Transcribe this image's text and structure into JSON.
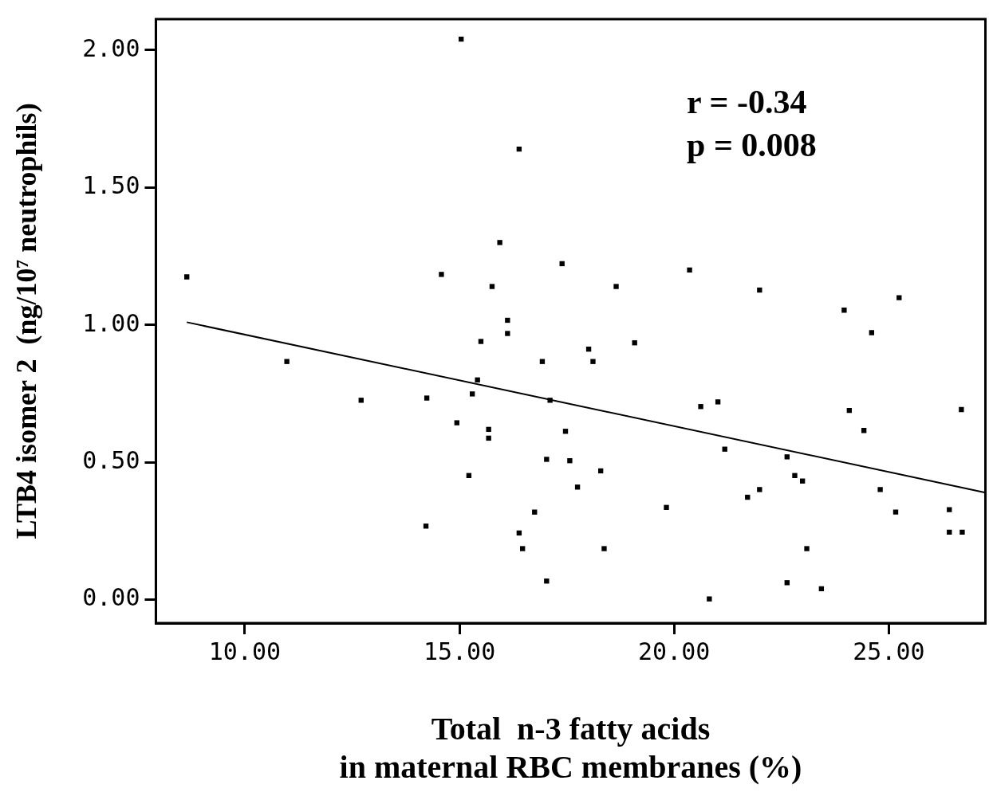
{
  "chart_data": {
    "type": "scatter",
    "xlabel": "Total  n-3 fatty acids\nin maternal RBC membranes (%)",
    "ylabel": "LTB4 isomer 2  (ng/10⁷ neutrophils)",
    "annotations": [
      "r = -0.34",
      "p = 0.008"
    ],
    "xlim": [
      7.93,
      27.25
    ],
    "ylim": [
      -0.085,
      2.113
    ],
    "xticks": [
      {
        "value": 10,
        "label": "10.00"
      },
      {
        "value": 15,
        "label": "15.00"
      },
      {
        "value": 20,
        "label": "20.00"
      },
      {
        "value": 25,
        "label": "25.00"
      }
    ],
    "yticks": [
      {
        "value": 0,
        "label": "0.00"
      },
      {
        "value": 0.5,
        "label": "0.50"
      },
      {
        "value": 1,
        "label": "1.00"
      },
      {
        "value": 1.5,
        "label": "1.50"
      },
      {
        "value": 2,
        "label": "2.00"
      }
    ],
    "grid": false,
    "legend": false,
    "series": [
      {
        "type": "scatter",
        "color": "#000000",
        "marker": "square",
        "x": [
          8.65,
          10.98,
          12.71,
          14.24,
          14.22,
          14.58,
          15.04,
          14.94,
          15.3,
          15.22,
          15.42,
          15.5,
          15.68,
          15.68,
          15.76,
          15.94,
          16.12,
          16.12,
          16.39,
          16.39,
          16.47,
          16.75,
          16.93,
          17.03,
          17.03,
          17.11,
          17.39,
          17.47,
          17.57,
          17.75,
          18.01,
          18.11,
          18.29,
          18.37,
          18.65,
          19.08,
          19.82,
          20.36,
          20.62,
          20.82,
          21.02,
          21.18,
          21.71,
          21.99,
          21.99,
          22.63,
          22.63,
          22.81,
          22.99,
          23.09,
          23.43,
          23.96,
          24.08,
          24.42,
          24.6,
          24.8,
          25.16,
          25.24,
          26.41,
          26.41,
          26.69,
          26.71
        ],
        "values": [
          1.175,
          0.867,
          0.726,
          0.734,
          0.268,
          1.184,
          2.04,
          0.644,
          0.749,
          0.452,
          0.8,
          0.94,
          0.62,
          0.588,
          1.14,
          1.3,
          1.017,
          0.969,
          1.64,
          0.243,
          0.186,
          0.319,
          0.867,
          0.511,
          0.068,
          0.726,
          1.223,
          0.613,
          0.506,
          0.41,
          0.912,
          0.867,
          0.469,
          0.186,
          1.14,
          0.935,
          0.336,
          1.2,
          0.703,
          0.003,
          0.72,
          0.548,
          0.373,
          1.127,
          0.401,
          0.52,
          0.062,
          0.452,
          0.432,
          0.186,
          0.04,
          1.054,
          0.689,
          0.616,
          0.972,
          0.401,
          0.319,
          1.099,
          0.328,
          0.246,
          0.692,
          0.246
        ]
      },
      {
        "type": "line",
        "color": "#000000",
        "marker": "none",
        "line_style": "solid",
        "x": [
          8.65,
          27.25
        ],
        "values": [
          1.01,
          0.39
        ]
      }
    ]
  }
}
